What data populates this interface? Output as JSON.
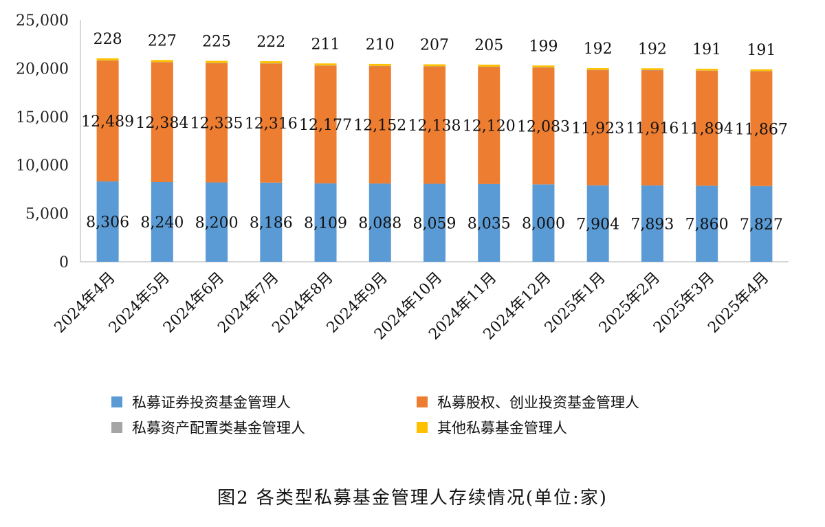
{
  "caption": "图2 各类型私募基金管理人存续情况(单位:家)",
  "chart_data": {
    "type": "bar",
    "stacked": true,
    "categories": [
      "2024年4月",
      "2024年5月",
      "2024年6月",
      "2024年7月",
      "2024年8月",
      "2024年9月",
      "2024年10月",
      "2024年11月",
      "2024年12月",
      "2025年1月",
      "2025年2月",
      "2025年3月",
      "2025年4月"
    ],
    "series": [
      {
        "name": "私募证券投资基金管理人",
        "color": "#5B9BD5",
        "values": [
          8306,
          8240,
          8200,
          8186,
          8109,
          8088,
          8059,
          8035,
          8000,
          7904,
          7893,
          7860,
          7827
        ],
        "labels": [
          "8,306",
          "8,240",
          "8,200",
          "8,186",
          "8,109",
          "8,088",
          "8,059",
          "8,035",
          "8,000",
          "7,904",
          "7,893",
          "7,860",
          "7,827"
        ]
      },
      {
        "name": "私募股权、创业投资基金管理人",
        "color": "#ED7D31",
        "values": [
          12489,
          12384,
          12335,
          12316,
          12177,
          12152,
          12138,
          12120,
          12083,
          11923,
          11916,
          11894,
          11867
        ],
        "labels": [
          "12,489",
          "12,384",
          "12,335",
          "12,316",
          "12,177",
          "12,152",
          "12,138",
          "12,120",
          "12,083",
          "11,923",
          "11,916",
          "11,894",
          "11,867"
        ]
      },
      {
        "name": "私募资产配置类基金管理人",
        "color": "#A5A5A5",
        "values": [
          9,
          9,
          9,
          9,
          9,
          9,
          9,
          9,
          9,
          9,
          9,
          9,
          9
        ],
        "labels": []
      },
      {
        "name": "其他私募基金管理人",
        "color": "#FFC000",
        "values": [
          228,
          227,
          225,
          222,
          211,
          210,
          207,
          205,
          199,
          192,
          192,
          191,
          191
        ],
        "labels": [
          "228",
          "227",
          "225",
          "222",
          "211",
          "210",
          "207",
          "205",
          "199",
          "192",
          "192",
          "191",
          "191"
        ]
      }
    ],
    "yticks": [
      "0",
      "5,000",
      "10,000",
      "15,000",
      "20,000",
      "25,000"
    ],
    "ylim": [
      0,
      25000
    ],
    "legend_position": "bottom",
    "grid": false
  }
}
